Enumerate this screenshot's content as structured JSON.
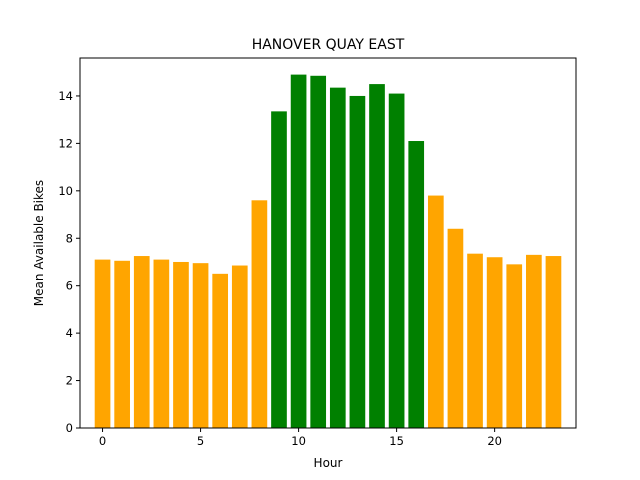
{
  "chart_data": {
    "type": "bar",
    "title": "HANOVER QUAY EAST",
    "xlabel": "Hour",
    "ylabel": "Mean Available Bikes",
    "x": [
      0,
      1,
      2,
      3,
      4,
      5,
      6,
      7,
      8,
      9,
      10,
      11,
      12,
      13,
      14,
      15,
      16,
      17,
      18,
      19,
      20,
      21,
      22,
      23
    ],
    "values": [
      7.1,
      7.05,
      7.25,
      7.1,
      7.0,
      6.95,
      6.5,
      6.85,
      9.6,
      13.35,
      14.9,
      14.85,
      14.35,
      14.0,
      14.5,
      14.1,
      12.1,
      9.8,
      8.4,
      7.35,
      7.2,
      6.9,
      7.3,
      7.25
    ],
    "highlight_range": [
      9,
      16
    ],
    "colors": {
      "default": "#ffa500",
      "highlight": "#008000"
    },
    "xlim": [
      -1.15,
      24.15
    ],
    "ylim": [
      0,
      15.6
    ],
    "xticks": [
      0,
      5,
      10,
      15,
      20
    ],
    "yticks": [
      0,
      2,
      4,
      6,
      8,
      10,
      12,
      14
    ],
    "grid": false,
    "legend": "none"
  }
}
